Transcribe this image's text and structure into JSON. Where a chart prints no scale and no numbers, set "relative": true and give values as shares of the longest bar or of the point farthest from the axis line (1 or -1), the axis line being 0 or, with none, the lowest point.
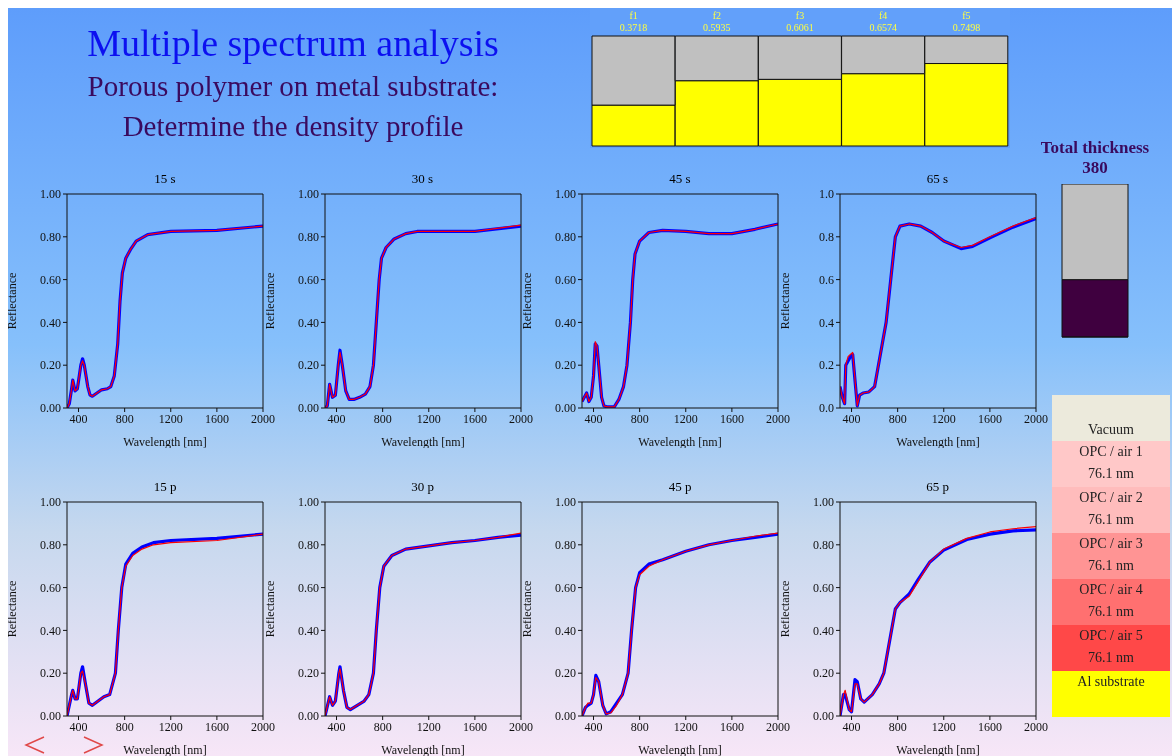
{
  "chart_data": [
    {
      "type": "other",
      "title": "Multiple spectrum analysis",
      "subtitle": "Porous polymer on metal substrate: Determine the density profile"
    },
    {
      "type": "bar",
      "stacked": true,
      "relative": true,
      "categories": [
        "f1\n0.3718",
        "f2\n0.5935",
        "f3\n0.6061",
        "f4\n0.6574",
        "f5\n0.7498"
      ],
      "series": [
        {
          "color": "#ffff00",
          "values": [
            0.3718,
            0.5935,
            0.6061,
            0.6574,
            0.7498
          ]
        },
        {
          "color": "#c0c0c0",
          "values": [
            0.6282,
            0.4065,
            0.3939,
            0.3426,
            0.2502
          ]
        }
      ]
    },
    {
      "type": "bar",
      "stacked": true,
      "relative": true,
      "title": "Total thickness",
      "subtitle": "380",
      "categories": [
        null
      ],
      "series": [
        {
          "color": "#3f003f",
          "values": [
            0.375
          ]
        },
        {
          "color": "#c0c0c0",
          "values": [
            0.625
          ]
        }
      ]
    },
    {
      "type": "line",
      "title": "15 s",
      "xlabel": "Wavelength [nm]",
      "ylabel": "Reflectance",
      "xlim": [
        300,
        2000
      ],
      "xticks": [
        400,
        800,
        1200,
        1600,
        2000
      ],
      "ylim": [
        0,
        1
      ],
      "yticks": [
        {
          "value": 0,
          "label": "0.00"
        },
        {
          "value": 0.2,
          "label": "0.20"
        },
        {
          "value": 0.4,
          "label": "0.40"
        },
        {
          "value": 0.6,
          "label": "0.60"
        },
        {
          "value": 0.8,
          "label": "0.80"
        },
        {
          "value": 1,
          "label": "1.00"
        }
      ],
      "series": [
        {
          "color": "#0000ff",
          "x": [
            300,
            320,
            340,
            350,
            370,
            390,
            420,
            435,
            450,
            480,
            500,
            520,
            560,
            600,
            650,
            680,
            710,
            740,
            760,
            780,
            810,
            850,
            900,
            1000,
            1200,
            1600,
            2000
          ],
          "values": [
            0,
            0.02,
            0.09,
            0.13,
            0.08,
            0.09,
            0.2,
            0.23,
            0.2,
            0.1,
            0.06,
            0.055,
            0.07,
            0.085,
            0.09,
            0.1,
            0.15,
            0.3,
            0.5,
            0.63,
            0.7,
            0.74,
            0.78,
            0.81,
            0.825,
            0.83,
            0.85
          ]
        },
        {
          "color": "#ff0000",
          "x": [
            300,
            320,
            340,
            350,
            370,
            390,
            420,
            435,
            450,
            480,
            500,
            520,
            560,
            600,
            650,
            680,
            710,
            740,
            760,
            780,
            810,
            850,
            900,
            1000,
            1200,
            1600,
            2000
          ],
          "values": [
            0,
            0.02,
            0.09,
            0.13,
            0.08,
            0.09,
            0.2,
            0.22,
            0.2,
            0.1,
            0.06,
            0.055,
            0.07,
            0.085,
            0.09,
            0.1,
            0.15,
            0.3,
            0.5,
            0.63,
            0.7,
            0.74,
            0.78,
            0.81,
            0.825,
            0.83,
            0.85
          ]
        }
      ]
    },
    {
      "type": "line",
      "title": "30 s",
      "xlabel": "Wavelength [nm]",
      "ylabel": "Reflectance",
      "xlim": [
        300,
        2000
      ],
      "xticks": [
        400,
        800,
        1200,
        1600,
        2000
      ],
      "ylim": [
        0,
        1
      ],
      "yticks": [
        {
          "value": 0,
          "label": "0.00"
        },
        {
          "value": 0.2,
          "label": "0.20"
        },
        {
          "value": 0.4,
          "label": "0.40"
        },
        {
          "value": 0.6,
          "label": "0.60"
        },
        {
          "value": 0.8,
          "label": "0.80"
        },
        {
          "value": 1,
          "label": "1.00"
        }
      ],
      "series": [
        {
          "color": "#0000ff",
          "x": [
            300,
            320,
            340,
            365,
            390,
            415,
            430,
            450,
            480,
            510,
            550,
            600,
            650,
            690,
            720,
            745,
            770,
            790,
            830,
            900,
            1000,
            1100,
            1600,
            2000
          ],
          "values": [
            0,
            0.01,
            0.11,
            0.05,
            0.06,
            0.2,
            0.27,
            0.2,
            0.08,
            0.04,
            0.04,
            0.05,
            0.065,
            0.1,
            0.2,
            0.4,
            0.6,
            0.7,
            0.75,
            0.79,
            0.815,
            0.825,
            0.825,
            0.85
          ]
        },
        {
          "color": "#ff0000",
          "x": [
            300,
            320,
            340,
            365,
            390,
            415,
            430,
            450,
            480,
            510,
            550,
            600,
            650,
            690,
            720,
            745,
            770,
            790,
            830,
            900,
            1000,
            1100,
            1600,
            2000
          ],
          "values": [
            0,
            0.01,
            0.11,
            0.05,
            0.06,
            0.2,
            0.26,
            0.2,
            0.08,
            0.04,
            0.04,
            0.05,
            0.065,
            0.1,
            0.2,
            0.4,
            0.6,
            0.7,
            0.75,
            0.79,
            0.815,
            0.825,
            0.825,
            0.855
          ]
        }
      ]
    },
    {
      "type": "line",
      "title": "45 s",
      "xlabel": "Wavelength [nm]",
      "ylabel": "Reflectance",
      "xlim": [
        300,
        2000
      ],
      "xticks": [
        400,
        800,
        1200,
        1600,
        2000
      ],
      "ylim": [
        0,
        1
      ],
      "yticks": [
        {
          "value": 0,
          "label": "0.00"
        },
        {
          "value": 0.2,
          "label": "0.20"
        },
        {
          "value": 0.4,
          "label": "0.40"
        },
        {
          "value": 0.6,
          "label": "0.60"
        },
        {
          "value": 0.8,
          "label": "0.80"
        },
        {
          "value": 1,
          "label": "1.00"
        }
      ],
      "series": [
        {
          "color": "#0000ff",
          "x": [
            300,
            340,
            360,
            380,
            400,
            415,
            430,
            445,
            470,
            490,
            520,
            580,
            620,
            660,
            690,
            720,
            740,
            760,
            800,
            880,
            1000,
            1200,
            1400,
            1600,
            1800,
            2000
          ],
          "values": [
            0.03,
            0.07,
            0.03,
            0.05,
            0.15,
            0.3,
            0.29,
            0.2,
            0.05,
            0.01,
            0.005,
            0.005,
            0.04,
            0.1,
            0.2,
            0.4,
            0.6,
            0.72,
            0.78,
            0.82,
            0.83,
            0.825,
            0.815,
            0.815,
            0.835,
            0.86
          ]
        },
        {
          "color": "#ff0000",
          "x": [
            300,
            340,
            360,
            380,
            400,
            415,
            430,
            445,
            470,
            490,
            520,
            580,
            620,
            660,
            690,
            720,
            740,
            760,
            800,
            880,
            1000,
            1200,
            1400,
            1600,
            1800,
            2000
          ],
          "values": [
            0.03,
            0.07,
            0.03,
            0.05,
            0.15,
            0.31,
            0.29,
            0.2,
            0.05,
            0.01,
            0.005,
            0.005,
            0.04,
            0.1,
            0.2,
            0.4,
            0.6,
            0.72,
            0.78,
            0.82,
            0.83,
            0.825,
            0.815,
            0.815,
            0.835,
            0.86
          ]
        }
      ]
    },
    {
      "type": "line",
      "title": "65 s",
      "xlabel": "Wavelength [nm]",
      "ylabel": "Reflectance",
      "xlim": [
        300,
        2000
      ],
      "xticks": [
        400,
        800,
        1200,
        1600,
        2000
      ],
      "ylim": [
        0,
        1
      ],
      "yticks": [
        {
          "value": 0,
          "label": "0.0"
        },
        {
          "value": 0.2,
          "label": "0.2"
        },
        {
          "value": 0.4,
          "label": "0.4"
        },
        {
          "value": 0.6,
          "label": "0.6"
        },
        {
          "value": 0.8,
          "label": "0.8"
        },
        {
          "value": 1,
          "label": "1.0"
        }
      ],
      "series": [
        {
          "color": "#0000ff",
          "x": [
            300,
            320,
            340,
            350,
            370,
            390,
            410,
            440,
            450,
            470,
            500,
            550,
            600,
            650,
            700,
            740,
            780,
            820,
            900,
            1000,
            1100,
            1200,
            1350,
            1450,
            1600,
            1800,
            2000
          ],
          "values": [
            0.1,
            0.05,
            0.02,
            0.2,
            0.22,
            0.24,
            0.25,
            0.07,
            0.01,
            0.06,
            0.07,
            0.075,
            0.1,
            0.25,
            0.4,
            0.6,
            0.8,
            0.85,
            0.86,
            0.85,
            0.82,
            0.78,
            0.745,
            0.755,
            0.795,
            0.845,
            0.885
          ]
        },
        {
          "color": "#ff0000",
          "x": [
            300,
            320,
            340,
            350,
            370,
            390,
            410,
            440,
            450,
            470,
            500,
            550,
            600,
            650,
            700,
            740,
            780,
            820,
            900,
            1000,
            1100,
            1200,
            1350,
            1450,
            1600,
            1800,
            2000
          ],
          "values": [
            0.1,
            0.05,
            0.02,
            0.2,
            0.24,
            0.25,
            0.26,
            0.07,
            0.01,
            0.06,
            0.07,
            0.075,
            0.1,
            0.25,
            0.4,
            0.6,
            0.8,
            0.85,
            0.86,
            0.85,
            0.82,
            0.78,
            0.75,
            0.76,
            0.8,
            0.85,
            0.89
          ]
        }
      ]
    },
    {
      "type": "line",
      "title": "15 p",
      "xlabel": "Wavelength [nm]",
      "ylabel": "Reflectance",
      "xlim": [
        300,
        2000
      ],
      "xticks": [
        400,
        800,
        1200,
        1600,
        2000
      ],
      "ylim": [
        0,
        1
      ],
      "yticks": [
        {
          "value": 0,
          "label": "0.00"
        },
        {
          "value": 0.2,
          "label": "0.20"
        },
        {
          "value": 0.4,
          "label": "0.40"
        },
        {
          "value": 0.6,
          "label": "0.60"
        },
        {
          "value": 0.8,
          "label": "0.80"
        },
        {
          "value": 1,
          "label": "1.00"
        }
      ],
      "series": [
        {
          "color": "#0000ff",
          "x": [
            300,
            340,
            350,
            370,
            390,
            420,
            435,
            460,
            490,
            520,
            570,
            620,
            670,
            720,
            745,
            775,
            810,
            870,
            950,
            1050,
            1200,
            1600,
            2000
          ],
          "values": [
            0,
            0.1,
            0.12,
            0.08,
            0.08,
            0.2,
            0.23,
            0.15,
            0.06,
            0.05,
            0.07,
            0.09,
            0.1,
            0.2,
            0.4,
            0.6,
            0.71,
            0.76,
            0.79,
            0.81,
            0.82,
            0.83,
            0.85
          ]
        },
        {
          "color": "#ff0000",
          "x": [
            300,
            340,
            350,
            370,
            390,
            420,
            435,
            460,
            490,
            520,
            570,
            620,
            670,
            720,
            745,
            775,
            810,
            870,
            950,
            1050,
            1200,
            1600,
            2000
          ],
          "values": [
            0,
            0.1,
            0.12,
            0.08,
            0.08,
            0.2,
            0.21,
            0.15,
            0.06,
            0.05,
            0.07,
            0.09,
            0.1,
            0.2,
            0.4,
            0.6,
            0.7,
            0.75,
            0.78,
            0.8,
            0.81,
            0.82,
            0.85
          ]
        }
      ]
    },
    {
      "type": "line",
      "title": "30 p",
      "xlabel": "Wavelength [nm]",
      "ylabel": "Reflectance",
      "xlim": [
        300,
        2000
      ],
      "xticks": [
        400,
        800,
        1200,
        1600,
        2000
      ],
      "ylim": [
        0,
        1
      ],
      "yticks": [
        {
          "value": 0,
          "label": "0.00"
        },
        {
          "value": 0.2,
          "label": "0.20"
        },
        {
          "value": 0.4,
          "label": "0.40"
        },
        {
          "value": 0.6,
          "label": "0.60"
        },
        {
          "value": 0.8,
          "label": "0.80"
        },
        {
          "value": 1,
          "label": "1.00"
        }
      ],
      "series": [
        {
          "color": "#0000ff",
          "x": [
            300,
            340,
            365,
            390,
            420,
            430,
            460,
            490,
            520,
            580,
            640,
            680,
            720,
            745,
            775,
            810,
            880,
            1000,
            1200,
            1400,
            1600,
            1800,
            2000
          ],
          "values": [
            0,
            0.09,
            0.05,
            0.07,
            0.2,
            0.23,
            0.12,
            0.04,
            0.03,
            0.05,
            0.07,
            0.1,
            0.2,
            0.4,
            0.6,
            0.7,
            0.75,
            0.78,
            0.795,
            0.81,
            0.82,
            0.835,
            0.845
          ]
        },
        {
          "color": "#ff0000",
          "x": [
            300,
            340,
            365,
            390,
            420,
            430,
            460,
            490,
            520,
            580,
            640,
            680,
            720,
            745,
            775,
            810,
            880,
            1000,
            1200,
            1400,
            1600,
            1800,
            2000
          ],
          "values": [
            0,
            0.09,
            0.05,
            0.07,
            0.2,
            0.22,
            0.12,
            0.04,
            0.03,
            0.05,
            0.07,
            0.1,
            0.2,
            0.4,
            0.6,
            0.7,
            0.75,
            0.78,
            0.795,
            0.81,
            0.82,
            0.835,
            0.855
          ]
        }
      ]
    },
    {
      "type": "line",
      "title": "45 p",
      "xlabel": "Wavelength [nm]",
      "ylabel": "Reflectance",
      "xlim": [
        300,
        2000
      ],
      "xticks": [
        400,
        800,
        1200,
        1600,
        2000
      ],
      "ylim": [
        0,
        1
      ],
      "yticks": [
        {
          "value": 0,
          "label": "0.00"
        },
        {
          "value": 0.2,
          "label": "0.20"
        },
        {
          "value": 0.4,
          "label": "0.40"
        },
        {
          "value": 0.6,
          "label": "0.60"
        },
        {
          "value": 0.8,
          "label": "0.80"
        },
        {
          "value": 1,
          "label": "1.00"
        }
      ],
      "series": [
        {
          "color": "#0000ff",
          "x": [
            300,
            330,
            350,
            380,
            400,
            420,
            445,
            480,
            510,
            550,
            600,
            650,
            700,
            730,
            765,
            800,
            880,
            1000,
            1200,
            1400,
            1600,
            1800,
            2000
          ],
          "values": [
            0,
            0.04,
            0.05,
            0.06,
            0.1,
            0.19,
            0.16,
            0.05,
            0.01,
            0.02,
            0.06,
            0.1,
            0.2,
            0.4,
            0.6,
            0.67,
            0.71,
            0.73,
            0.77,
            0.8,
            0.82,
            0.835,
            0.85
          ]
        },
        {
          "color": "#ff0000",
          "x": [
            300,
            330,
            350,
            380,
            400,
            420,
            445,
            480,
            510,
            550,
            600,
            650,
            700,
            730,
            765,
            800,
            880,
            1000,
            1200,
            1400,
            1600,
            1800,
            2000
          ],
          "values": [
            0,
            0.04,
            0.06,
            0.06,
            0.1,
            0.18,
            0.16,
            0.05,
            0.01,
            0.015,
            0.05,
            0.1,
            0.2,
            0.4,
            0.6,
            0.66,
            0.7,
            0.73,
            0.77,
            0.8,
            0.82,
            0.84,
            0.855
          ]
        }
      ]
    },
    {
      "type": "line",
      "title": "65 p",
      "xlabel": "Wavelength [nm]",
      "ylabel": "Reflectance",
      "xlim": [
        300,
        2000
      ],
      "xticks": [
        400,
        800,
        1200,
        1600,
        2000
      ],
      "ylim": [
        0,
        1
      ],
      "yticks": [
        {
          "value": 0,
          "label": "0.00"
        },
        {
          "value": 0.2,
          "label": "0.20"
        },
        {
          "value": 0.4,
          "label": "0.40"
        },
        {
          "value": 0.6,
          "label": "0.60"
        },
        {
          "value": 0.8,
          "label": "0.80"
        },
        {
          "value": 1,
          "label": "1.00"
        }
      ],
      "series": [
        {
          "color": "#0000ff",
          "x": [
            300,
            330,
            345,
            380,
            400,
            430,
            450,
            480,
            510,
            580,
            640,
            680,
            730,
            780,
            820,
            900,
            980,
            1080,
            1200,
            1400,
            1600,
            1800,
            2000
          ],
          "values": [
            0,
            0.1,
            0.1,
            0.03,
            0.02,
            0.17,
            0.16,
            0.08,
            0.065,
            0.1,
            0.15,
            0.2,
            0.35,
            0.5,
            0.53,
            0.57,
            0.64,
            0.72,
            0.775,
            0.825,
            0.85,
            0.865,
            0.87
          ]
        },
        {
          "color": "#ff0000",
          "x": [
            300,
            330,
            345,
            380,
            400,
            430,
            450,
            480,
            510,
            580,
            640,
            680,
            730,
            780,
            820,
            900,
            980,
            1080,
            1200,
            1400,
            1600,
            1800,
            2000
          ],
          "values": [
            0,
            0.1,
            0.12,
            0.03,
            0.02,
            0.15,
            0.15,
            0.08,
            0.065,
            0.1,
            0.15,
            0.2,
            0.35,
            0.5,
            0.53,
            0.56,
            0.63,
            0.72,
            0.78,
            0.83,
            0.86,
            0.875,
            0.885
          ]
        }
      ]
    },
    {
      "type": "other",
      "categories": [
        "Vacuum",
        "OPC / air 1",
        "OPC / air 2",
        "OPC / air 3",
        "OPC / air 4",
        "OPC / air 5",
        "Al substrate"
      ],
      "values": [
        null,
        76.1,
        76.1,
        76.1,
        76.1,
        76.1,
        null
      ],
      "value_labels": [
        null,
        "76.1 nm",
        "76.1 nm",
        "76.1 nm",
        "76.1 nm",
        "76.1 nm",
        null
      ],
      "colors": [
        "#eceadc",
        "#ffc8c8",
        "#ffbcbc",
        "#ff9494",
        "#ff7070",
        "#ff4848",
        "#ffff00"
      ]
    }
  ]
}
